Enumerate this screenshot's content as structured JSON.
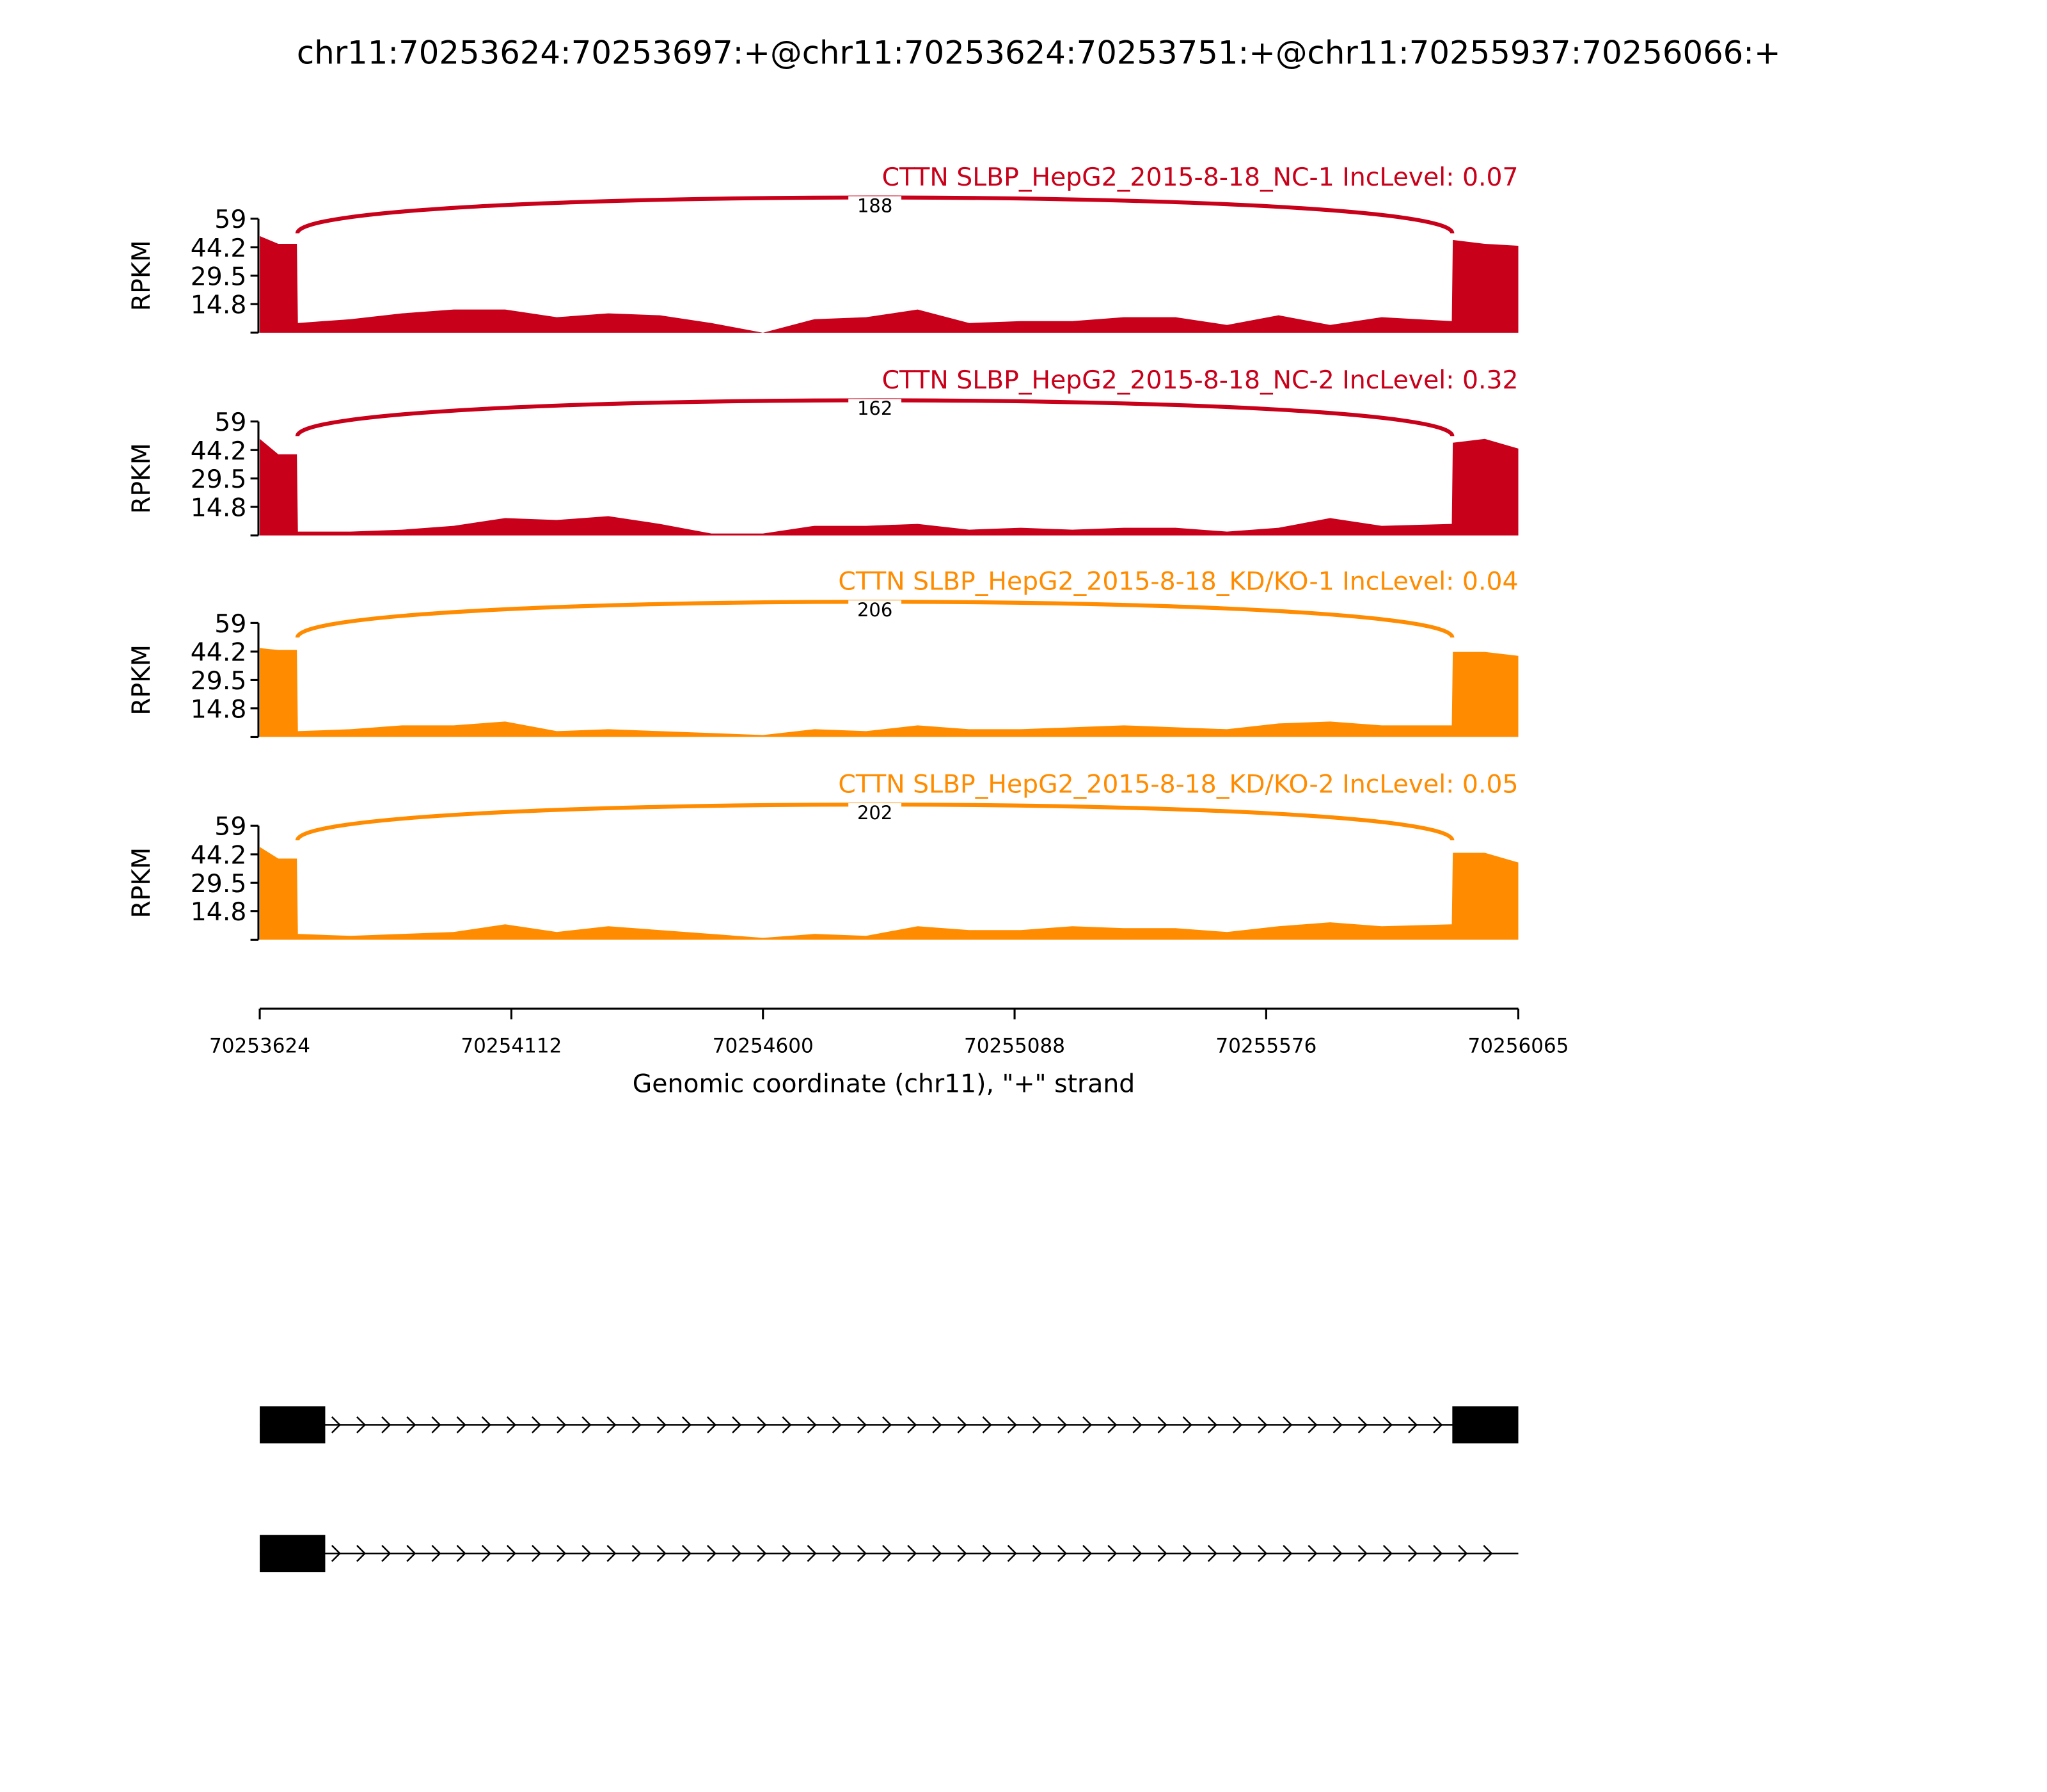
{
  "title": "chr11:70253624:70253697:+@chr11:70253624:70253751:+@chr11:70255937:70256066:+",
  "x_axis": {
    "label": "Genomic coordinate (chr11), \"+\" strand",
    "xlim": [
      70253624,
      70256065
    ],
    "xticks": [
      70253624,
      70254112,
      70254600,
      70255088,
      70255576,
      70256065
    ]
  },
  "chart_data": [
    {
      "type": "area",
      "title": "CTTN SLBP_HepG2_2015-8-18_NC-1 IncLevel: 0.07",
      "ylabel": "RPKM",
      "color": "#c8001a",
      "ylim": [
        0,
        59
      ],
      "yticks": [
        14.8,
        29.5,
        44.2,
        59
      ],
      "x": [
        70253624,
        70253660,
        70253696,
        70253698,
        70253800,
        70253900,
        70254000,
        70254100,
        70254200,
        70254300,
        70254400,
        70254500,
        70254600,
        70254700,
        70254800,
        70254900,
        70255000,
        70255100,
        70255200,
        70255300,
        70255400,
        70255500,
        70255600,
        70255700,
        70255800,
        70255936,
        70255938,
        70256000,
        70256065
      ],
      "values": [
        50,
        46,
        46,
        5,
        7,
        10,
        12,
        12,
        8,
        10,
        9,
        5,
        0,
        7,
        8,
        12,
        5,
        6,
        6,
        8,
        8,
        4,
        9,
        4,
        8,
        6,
        48,
        46,
        45
      ],
      "junction": {
        "from": 70253697,
        "to": 70255937,
        "count": 188
      }
    },
    {
      "type": "area",
      "title": "CTTN SLBP_HepG2_2015-8-18_NC-2 IncLevel: 0.32",
      "ylabel": "RPKM",
      "color": "#c8001a",
      "ylim": [
        0,
        59
      ],
      "yticks": [
        14.8,
        29.5,
        44.2,
        59
      ],
      "x": [
        70253624,
        70253660,
        70253696,
        70253698,
        70253800,
        70253900,
        70254000,
        70254100,
        70254200,
        70254300,
        70254400,
        70254500,
        70254600,
        70254700,
        70254800,
        70254900,
        70255000,
        70255100,
        70255200,
        70255300,
        70255400,
        70255500,
        70255600,
        70255700,
        70255800,
        70255936,
        70255938,
        70256000,
        70256065
      ],
      "values": [
        50,
        42,
        42,
        2,
        2,
        3,
        5,
        9,
        8,
        10,
        6,
        1,
        1,
        5,
        5,
        6,
        3,
        4,
        3,
        4,
        4,
        2,
        4,
        9,
        5,
        6,
        48,
        50,
        45
      ],
      "junction": {
        "from": 70253697,
        "to": 70255937,
        "count": 162
      }
    },
    {
      "type": "area",
      "title": "CTTN SLBP_HepG2_2015-8-18_KD/KO-1 IncLevel: 0.04",
      "ylabel": "RPKM",
      "color": "#ff8c00",
      "ylim": [
        0,
        59
      ],
      "yticks": [
        14.8,
        29.5,
        44.2,
        59
      ],
      "x": [
        70253624,
        70253660,
        70253696,
        70253698,
        70253800,
        70253900,
        70254000,
        70254100,
        70254200,
        70254300,
        70254400,
        70254500,
        70254600,
        70254700,
        70254800,
        70254900,
        70255000,
        70255100,
        70255200,
        70255300,
        70255400,
        70255500,
        70255600,
        70255700,
        70255800,
        70255936,
        70255938,
        70256000,
        70256065
      ],
      "values": [
        46,
        45,
        45,
        3,
        4,
        6,
        6,
        8,
        3,
        4,
        3,
        2,
        1,
        4,
        3,
        6,
        4,
        4,
        5,
        6,
        5,
        4,
        7,
        8,
        6,
        6,
        44,
        44,
        42
      ],
      "junction": {
        "from": 70253697,
        "to": 70255937,
        "count": 206
      }
    },
    {
      "type": "area",
      "title": "CTTN SLBP_HepG2_2015-8-18_KD/KO-2 IncLevel: 0.05",
      "ylabel": "RPKM",
      "color": "#ff8c00",
      "ylim": [
        0,
        59
      ],
      "yticks": [
        14.8,
        29.5,
        44.2,
        59
      ],
      "x": [
        70253624,
        70253660,
        70253696,
        70253698,
        70253800,
        70253900,
        70254000,
        70254100,
        70254200,
        70254300,
        70254400,
        70254500,
        70254600,
        70254700,
        70254800,
        70254900,
        70255000,
        70255100,
        70255200,
        70255300,
        70255400,
        70255500,
        70255600,
        70255700,
        70255800,
        70255936,
        70255938,
        70256000,
        70256065
      ],
      "values": [
        48,
        42,
        42,
        3,
        2,
        3,
        4,
        8,
        4,
        7,
        5,
        3,
        1,
        3,
        2,
        7,
        5,
        5,
        7,
        6,
        6,
        4,
        7,
        9,
        7,
        8,
        45,
        45,
        40
      ],
      "junction": {
        "from": 70253697,
        "to": 70255937,
        "count": 202
      }
    }
  ],
  "transcripts": [
    {
      "exons": [
        [
          70253624,
          70253751
        ],
        [
          70255937,
          70256065
        ]
      ],
      "end": 70256065
    },
    {
      "exons": [
        [
          70253624,
          70253751
        ]
      ],
      "end": 70256065
    }
  ]
}
